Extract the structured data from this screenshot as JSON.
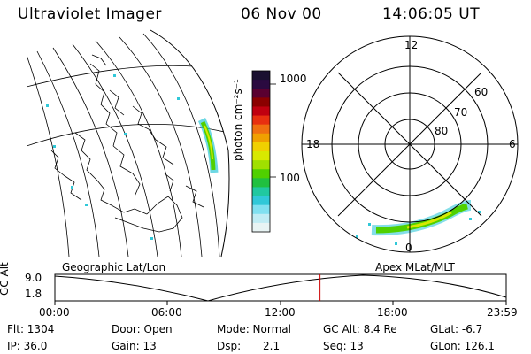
{
  "header": {
    "instrument": "Ultraviolet Imager",
    "date": "06 Nov 00",
    "time": "14:06:05 UT"
  },
  "colorbar": {
    "unit_label": "photon cm⁻²s⁻¹",
    "ticks": [
      "1000",
      "100"
    ],
    "colors": [
      "#1a1030",
      "#2b0a40",
      "#5a0030",
      "#8b0000",
      "#c00010",
      "#e83010",
      "#f07010",
      "#f0a000",
      "#f0d000",
      "#d8e800",
      "#a0e000",
      "#50d000",
      "#20c040",
      "#20c8a0",
      "#30c8d8",
      "#80e0f0",
      "#c0ecf4",
      "#e8f4f4"
    ]
  },
  "left_panel": {
    "label": "Geographic Lat/Lon"
  },
  "right_panel": {
    "label": "Apex MLat/MLT",
    "mlt_labels": {
      "top": "12",
      "left": "18",
      "right": "6",
      "bottom": "0"
    },
    "lat_labels": [
      "60",
      "70",
      "80"
    ]
  },
  "timeline": {
    "y_axis_label": "GC Alt",
    "y_max": "9.0",
    "y_min": "1.8",
    "x_ticks": [
      "00:00",
      "06:00",
      "12:00",
      "18:00",
      "23:59"
    ],
    "current_marker_hours": 14.1,
    "marker_color": "#cc0000"
  },
  "info": {
    "flt": "Flt: 1304",
    "ip": "IP: 36.0",
    "door": "Door: Open",
    "gain": "Gain: 13",
    "mode": "Mode: Normal",
    "dsp_label": "Dsp:",
    "dsp_value": "2.1",
    "gcalt": "GC Alt: 8.4 Re",
    "seq": "Seq: 13",
    "glat": "GLat:  -6.7",
    "glon": "GLon: 126.1"
  }
}
